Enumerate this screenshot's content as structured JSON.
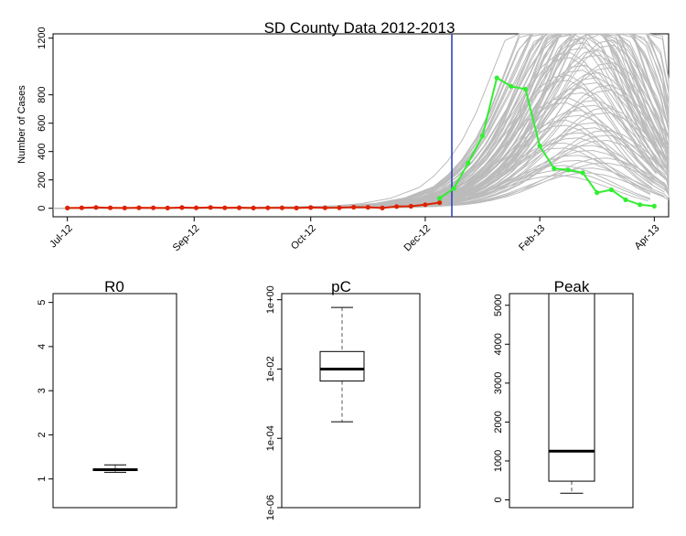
{
  "chart_data": [
    {
      "type": "line",
      "title": "SD County Data 2012-2013",
      "xlabel": "",
      "ylabel": "Number of Cases",
      "ylim": [
        -60,
        1230
      ],
      "yticks": [
        0,
        200,
        400,
        600,
        800,
        1200
      ],
      "xlim": [
        "2012-06-24",
        "2013-04-21"
      ],
      "xticks": [
        {
          "date": "2012-07-01",
          "label": "Jul-12"
        },
        {
          "date": "2012-09-01",
          "label": "Sep-12"
        },
        {
          "date": "2012-10-28",
          "label": "Oct-12"
        },
        {
          "date": "2012-12-23",
          "label": "Dec-12"
        },
        {
          "date": "2013-02-17",
          "label": "Feb-13"
        },
        {
          "date": "2013-04-14",
          "label": "Apr-13"
        }
      ],
      "vline": {
        "date": "2013-01-05",
        "color": "#3344bb"
      },
      "colors": {
        "fitted": "#bbbbbb",
        "observed": "#dd2200",
        "validation": "#33ee33"
      },
      "series": [
        {
          "role": "fitted",
          "dates": [
            "2012-07-01",
            "2012-07-29",
            "2012-08-26",
            "2012-09-23",
            "2012-10-21",
            "2012-11-18",
            "2012-12-02",
            "2012-12-16",
            "2012-12-30",
            "2013-01-06",
            "2013-01-13",
            "2013-01-20",
            "2013-01-27",
            "2013-02-03",
            "2013-02-10",
            "2013-02-17",
            "2013-02-24",
            "2013-03-03",
            "2013-03-10",
            "2013-03-17",
            "2013-03-24",
            "2013-03-31",
            "2013-04-07",
            "2013-04-14",
            "2013-04-21"
          ],
          "values": [
            0,
            0,
            1,
            2,
            3,
            6,
            12,
            25,
            52,
            80,
            118,
            170,
            240,
            330,
            420,
            520,
            600,
            650,
            660,
            620,
            540,
            440,
            330,
            230,
            150
          ]
        },
        {
          "role": "observed",
          "dates": [
            "2012-07-01",
            "2012-07-08",
            "2012-07-15",
            "2012-07-22",
            "2012-07-29",
            "2012-08-05",
            "2012-08-12",
            "2012-08-19",
            "2012-08-26",
            "2012-09-02",
            "2012-09-09",
            "2012-09-16",
            "2012-09-23",
            "2012-09-30",
            "2012-10-07",
            "2012-10-14",
            "2012-10-21",
            "2012-10-28",
            "2012-11-04",
            "2012-11-11",
            "2012-11-18",
            "2012-11-25",
            "2012-12-02",
            "2012-12-09",
            "2012-12-16",
            "2012-12-23",
            "2012-12-30"
          ],
          "values": [
            2,
            3,
            6,
            3,
            2,
            4,
            3,
            2,
            5,
            3,
            6,
            3,
            4,
            2,
            3,
            3,
            2,
            5,
            3,
            4,
            8,
            7,
            2,
            12,
            14,
            25,
            40
          ]
        },
        {
          "role": "validation",
          "dates": [
            "2012-12-30",
            "2013-01-06",
            "2013-01-13",
            "2013-01-20",
            "2013-01-27",
            "2013-02-03",
            "2013-02-10",
            "2013-02-17",
            "2013-02-24",
            "2013-03-03",
            "2013-03-10",
            "2013-03-17",
            "2013-03-24",
            "2013-03-31",
            "2013-04-07",
            "2013-04-14"
          ],
          "values": [
            70,
            140,
            320,
            510,
            920,
            860,
            840,
            440,
            280,
            270,
            250,
            110,
            130,
            60,
            25,
            15
          ]
        }
      ]
    },
    {
      "type": "box",
      "title": "R0",
      "ylim": [
        0.35,
        5.2
      ],
      "yticks": [
        "1",
        "2",
        "3",
        "4",
        "5"
      ],
      "stats": {
        "min": 1.15,
        "q1": 1.19,
        "median": 1.21,
        "q3": 1.23,
        "max": 1.32
      }
    },
    {
      "type": "box",
      "title": "pC",
      "scale": "log",
      "ylim": [
        1e-06,
        1.5
      ],
      "yticks": [
        "1e-06",
        "1e-04",
        "1e-02",
        "1e+00"
      ],
      "stats": {
        "min": 0.0003,
        "q1": 0.0045,
        "median": 0.01,
        "q3": 0.032,
        "max": 0.6
      }
    },
    {
      "type": "box",
      "title": "Peak",
      "ylim": [
        -200,
        5300
      ],
      "yticks": [
        "0",
        "1000",
        "2000",
        "3000",
        "4000",
        "5000"
      ],
      "stats": {
        "min": 170,
        "q1": 480,
        "median": 1250,
        "q3": 5300,
        "max": 5300
      }
    }
  ]
}
